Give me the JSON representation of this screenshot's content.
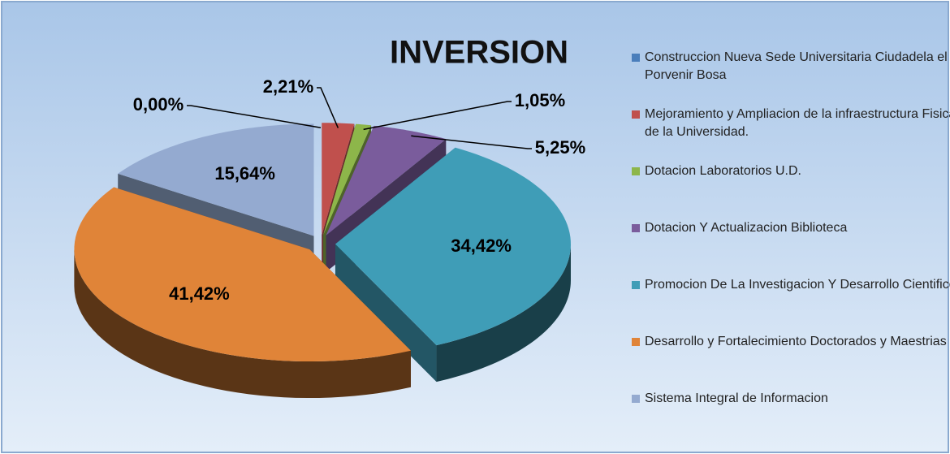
{
  "chart_data": {
    "type": "pie",
    "title": "INVERSION",
    "categories": [
      "Construccion Nueva Sede Universitaria Ciudadela el Porvenir Bosa",
      "Mejoramiento y Ampliacion de la infraestructura Fisica de la Universidad.",
      "Dotacion Laboratorios U.D.",
      "Dotacion Y Actualizacion Biblioteca",
      "Promocion De La Investigacion Y Desarrollo Cientifico",
      "Desarrollo y Fortalecimiento Doctorados y Maestrias",
      "Sistema Integral de Informacion"
    ],
    "values": [
      0,
      2.21,
      1.05,
      5.25,
      34.42,
      41.42,
      15.64
    ],
    "value_labels": [
      "0,00%",
      "2,21%",
      "1,05%",
      "5,25%",
      "34,42%",
      "41,42%",
      "15,64%"
    ],
    "colors": [
      "#4a7ebb",
      "#c0504d",
      "#8db64a",
      "#7a5c9c",
      "#3f9db7",
      "#e08438",
      "#94aad0"
    ],
    "legend": "right"
  }
}
